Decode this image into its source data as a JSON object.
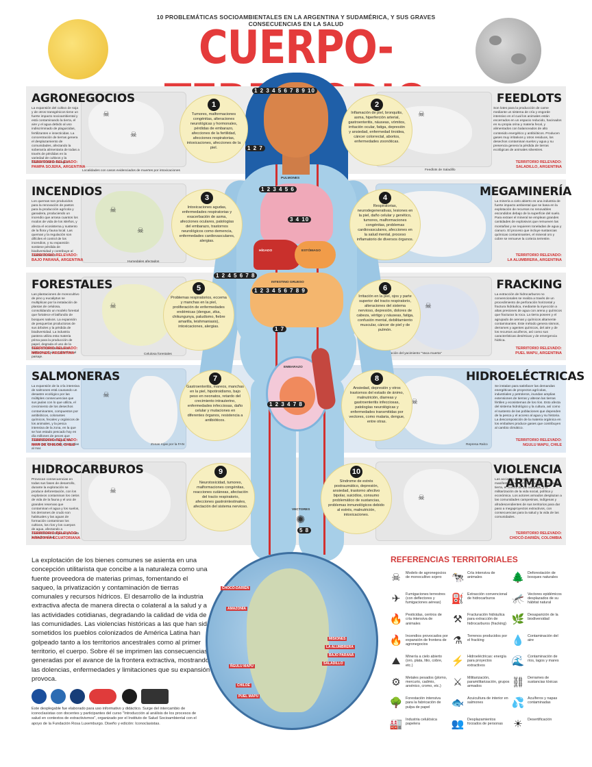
{
  "header": {
    "subtitle": "10 PROBLEMÁTICAS SOCIOAMBIENTALES EN LA ARGENTINA Y SUDAMÉRICA, Y SUS GRAVES CONSECUENCIAS EN LA SALUD",
    "title": "CUERPO-TERRITORIO"
  },
  "sections": [
    {
      "title": "AGRONEGOCIOS",
      "desc": "La expansión del cultivo de soja y de otros transgénicos tiene un fuerte impacto socioambiental y está contaminando la tierra, el aire y el agua debido al uso indiscriminado de plaguicidas, fertilizantes e insecticidas. La concentración de tierras genera el desplazamiento de comunidades, afectando la soberanía alimentaria de todas a través de pérdidas en la variedad de cultivos y la biodiversidad de la región.",
      "territory_label": "TERRITORIO RELEVADO:",
      "territory": "PAMPA SOJERA, ARGENTINA",
      "legend": "Localidades con casos evidenciados de muertes por intoxicaciones"
    },
    {
      "title": "FEEDLOTS",
      "desc": "Son lotes para la producción de carne mediante un sistema de cría y engorde intensivo en el cual los animales están encerrados en un espacio reducido, hacinados en su propia orina y materia fecal, y alimentados con balanceados de alto contenido energético y antibióticos. Producen gases muy irritativos y otros residuos, los desechos contaminan suelos y agua y su presencia genera la pérdida de tierras ecológicas de animales silvestres.",
      "territory_label": "TERRITORIO RELEVADO:",
      "territory": "SALADILLO, ARGENTINA",
      "legend": "Feedlots de Saladillo"
    },
    {
      "title": "INCENDIOS",
      "desc": "Los quemas son producidos para la renovación de pastos para la producción agrícola y ganadera, produciendo un incendio que arrasa cuantos los modos de vida de los isleños, y afecta el ecosistema y sustento de la flora y fauna local. Las quemas y la regulación son difíciles el control de los incendios, y su expansión sostiene pérdida de biodiversidad y contribuye al cambio climático.",
      "territory_label": "TERRITORIO RELEVADO:",
      "territory": "BAJO PARANÁ, ARGENTINA",
      "legend": "Humedales afectados"
    },
    {
      "title": "MEGAMINERÍA",
      "desc": "La minería a cielo abierto es una industria de fuerte impacto ambiental que se basa en la explotación de recursos no renovables escondidos debajo de la superficie del suelo. Para extraer el mineral se emplean grandes cantidades de explosivos que remueven las montañas y se requieren toneladas de agua y cianuro. El proceso que incluye sustancias químicas contaminantes, el mineral oro y cobre se remueve la corteza terrestre.",
      "territory_label": "TERRITORIO RELEVADO:",
      "territory": "LA ALUMBRERA, ARGENTINA",
      "legend": ""
    },
    {
      "title": "FORESTALES",
      "desc": "Las plantaciones de monocultivo de pino y eucaliptus se multiplican por la instalación de plantas de celulosa, consolidando un modelo forestal que fortalece el latifundio de bosques nativos. La expansión de pesquerías productoras de sus árboles y la pérdida de biodiversidad. La industria pastera utiliza esta materia prima para la producción de papel, degrada el uso de la tierra, contamina recursos hídricos y el aire, y deteriora el paisaje.",
      "territory_label": "TERRITORIO RELEVADO:",
      "territory": "MISIONES, ARGENTINA",
      "legend": "Celulosa forestales"
    },
    {
      "title": "FRACKING",
      "desc": "La extracción de hidrocarburos no convencionales se realiza a través de un procedimiento de perforación horizontal y fractura hidráulica, mediante la inyección a altas presiones de agua con arena y químicos que fracturan la roca. La tierra poseen y el agrupado de arenas y químicos altamente contaminantes. Este método genera sismos, derrames y agentes químicos, del aire y de los recursos acuíferos, así como sus características desérticas y de emergencia hídrica.",
      "territory_label": "TERRITORIO RELEVADO:",
      "territory": "PUEL MAPU, ARGENTINA",
      "legend": "Ubicación del yacimiento \"Vaca muerta\""
    },
    {
      "title": "SALMONERAS",
      "desc": "La expansión de la cría intensiva de salmones está causando un desastre ecológico por las múltiples consecuencias que sus jaulas con lo que utiliza, el crecimiento de los desechos contaminantes, compuestos por antibióticos, colorantes químicos, fecales y orgánicos de los animales, y la pesca intensiva de la zona, en la que se han estado pescado hoy en día millones de peces que contaminan a los lagos, los mares por las presas escapadas al mar.",
      "territory_label": "TERRITORIO RELEVADO:",
      "territory": "MAR DE CHILOÉ, CHILE",
      "legend": "Zonas rojas por la FAN"
    },
    {
      "title": "HIDROELÉCTRICAS",
      "desc": "Se instalan para satisfacer las demandas energéticas de proyectos agrícolas, industriales y petroleros, inundan amplias extensiones de tierras y alteran las tierras fértiles y ecosistemas de los ríos. Esto afecta del sistema hidrológico y la cultura, así como el sustento de las poblaciones que dependen de la pesca y el acceso al agua y su historia. La descomposición de la materia orgánica en los embalses produce gases que contribuyen al cambio climático.",
      "territory_label": "TERRITORIO RELEVADO:",
      "territory": "NGULU MAPU, CHILE",
      "legend": "Represa Ralco"
    },
    {
      "title": "HIDROCARBUROS",
      "desc": "Provocan consecuencias en todas sus fases de desarrollo, durante la exploración se produce deforestación, con los explosivos contaminan los cielos de vida de la fauna y el uso de grandes reservas que contaminan el agua y los suelos, los derrames de crudo son habituales y las aguas de formación contaminan los cultivos, los ríos y los cuerpos de agua, afectando a comunidades indígenas y a toda la biodiversidad.",
      "territory_label": "TERRITORIO RELEVADO:",
      "territory": "AMAZONÍA ECUATORIANA",
      "legend": ""
    },
    {
      "title": "VIOLENCIA ARMADA",
      "desc": "Las acciones del conflicto tienen manifestaciones territoriales en el uso de la tierra, el control de los recursos, y la militarización de la vida social, política y económica. Los actores armados desplazan a las comunidades campesinas, indígenas y afrodescendientes de sus territorios para dar paso a megaproyectos extractivos, con consecuencias para la salud y la vida de las comunidades.",
      "territory_label": "TERRITORIO RELEVADO:",
      "territory": "CHOCÓ-DARIÉN, COLOMBIA",
      "legend": ""
    }
  ],
  "effects": [
    {
      "num": "1",
      "text": "Tumores, malformaciones congénitas, alteraciones neurológicas y hormonales, pérdidas de embarazo, afecciones de la fertilidad, afecciones respiratorias, intoxicaciones, afecciones de la piel."
    },
    {
      "num": "2",
      "text": "Inflamación de piel, bronquitis, asma, hiperferción arterial, gastroenteritis, náuseas, vómitos, irritación ocular, fatiga, depresión y ansiedad, enfermedad tiroidea, cáncer colorrectal, abortos, enfermedades zoonóticas."
    },
    {
      "num": "3",
      "text": "Intoxicaciones agudas, enfermedades respiratorias y exacerbación de asma, afecciones oculares, patologías del embarazo, trastornos neurológicos como demencia, enfermedades cardiovasculares, alergias."
    },
    {
      "num": "4",
      "text": "Respiratorias, neurodegenerativas, lesiones en la piel, daño celular y genético, tumores, malformaciones congénitas, problemas cardiovasculares, afecciones en la salud mental, proceso inflamatorio de diversos órganos."
    },
    {
      "num": "5",
      "text": "Problemas respiratorios, eccema y manchas en la piel, proliferación de enfermedades endémicas (dengue, zika, chikungunya, paludismo, fiebre amarilla, leishmaniasis), intoxicaciones, alergias."
    },
    {
      "num": "6",
      "text": "Irritación en la piel, ojos y parte superior del tracto respiratorio, alteraciones del sistema nervioso, depresión, dolores de cabeza, vértigo y náuseas, fatiga, confusión mental, debilitamiento muscular, cáncer de piel y de pulmón."
    },
    {
      "num": "7",
      "text": "Gastroenteritis, mareos, manchas en la piel, hipotiroidismo, bajo peso en neonatos, retardo del crecimiento intrauterino, enfermedades infecciosas, daño celular y mutaciones en diferentes órganos, resistencia a antibióticos."
    },
    {
      "num": "8",
      "text": "Ansiedad, depresión y otros trastornos del estado de ánimo, malnutrición, diarreas y gastroenteritis infecciosas, patologías neurológicas y enfermedades transmitidas por vectores, como malaria, dengue, entre otras."
    },
    {
      "num": "9",
      "text": "Neurotoxicidad, tumores, malformaciones congénitas, reacciones cutáneas, afectación del tracto respiratorio, afecciones gastrointestinales, afectación del sistema nervioso."
    },
    {
      "num": "10",
      "text": "Síndrome de estrés postraumático, depresión, ansiedad, trastorno afectivo bipolar, suicidios, consumo problemático de sustancias, problemas inmunológicos debido al estrés, malnutrición, intoxicaciones."
    }
  ],
  "body_labels": {
    "head_numbers": "1 2 3 4 5 6 7 8 9 10",
    "neck_numbers": "1 2 7",
    "lung_numbers": "1 2 3 4 5 6",
    "liver_numbers": "3 4 10",
    "side_numbers": "1 2 4 5 6 7 8",
    "gut_numbers": "1 2 3 4 5 6 7 8 9",
    "womb_numbers": "1 2 3 4 7 8",
    "bottom_number": "1 7",
    "leg_numbers": "5 8",
    "organ_pulmones": "PULMONES",
    "organ_higado": "HÍGADO",
    "organ_estomago": "ESTÓMAGO",
    "organ_intestino": "INTESTINO GRUESO",
    "organ_embarazo": "EMBARAZO",
    "organ_vectores": "VECTORES"
  },
  "intro_text": "La explotación de los bienes comunes se asienta en una concepción utilitarista que concibe a la naturaleza como una fuente proveedora de materias primas, fomentando el saqueo, la privatización y contaminación de tierras comunales y recursos hídricos. El desarrollo de la industria extractiva afecta de manera directa o colateral a la salud y a las actividades cotidianas, degradando la calidad de vida de las comunidades. Las violencias históricas a las que han sido sometidos los pueblos colonizados de América Latina han golpeado tanto a los territorios ancestrales como al primer territorio, el cuerpo. Sobre él se imprimen las consecuencias generadas por el avance de la frontera extractiva, mostrando las dolencias, enfermedades y limitaciones que su expansión provoca.",
  "credits": "Este desplegable fue elaborado para uso informativo y didáctico. Surge del intercambio de iconoclasistas con docentes y participantes del curso \"Introducción al análisis de los procesos de salud en contextos de extractivismos\", organizado por el Instituto de Salud Socioambiental con el apoyo de la Fundación Rosa Luxemburgo. Diseño y edición: Iconoclasistas.",
  "map_labels": [
    "CHOCÓ-DARIÉN",
    "AMAZONÍA",
    "MISIONES",
    "LA ALUMBRERA",
    "BAJO PARANÁ",
    "SALADILLO",
    "ÑGULU MAPU",
    "CHILOÉ",
    "PUEL MAPU"
  ],
  "references": {
    "title": "REFERENCIAS TERRITORIALES",
    "items": [
      {
        "icon": "☠",
        "text": "Modelo de agronegocios de monocultivo sojero"
      },
      {
        "icon": "🐄",
        "text": "Cría intensiva de animales"
      },
      {
        "icon": "🌲",
        "text": "Deforestación de bosques naturales"
      },
      {
        "icon": "✈",
        "text": "Fumigaciones terrestres (con deflectores y fumigaciones aéreas)"
      },
      {
        "icon": "⛽",
        "text": "Extracción convencional de hidrocarburos"
      },
      {
        "icon": "🦟",
        "text": "Vectores epidémicos desplazados de su hábitat natural"
      },
      {
        "icon": "🔥",
        "text": "Pesticidas, centros de cría intensiva de animales"
      },
      {
        "icon": "⚒",
        "text": "Fracturación hidráulica para extracción de hidrocarburos (fracking)"
      },
      {
        "icon": "🌿",
        "text": "Desaparición de la biodiversidad"
      },
      {
        "icon": "🔥",
        "text": "Incendios provocados por expansión de frontera de agronegocios"
      },
      {
        "icon": "⚗",
        "text": "Terrenos producidos por el fracking"
      },
      {
        "icon": "💧",
        "text": "Contaminación del aire"
      },
      {
        "icon": "⛰",
        "text": "Minería a cielo abierto (oro, plata, litio, cobre, etc.)"
      },
      {
        "icon": "⚡",
        "text": "Hidroeléctricas: energía para proyectos extractivos"
      },
      {
        "icon": "🌊",
        "text": "Contaminación de ríos, lagos y mares"
      },
      {
        "icon": "⚙",
        "text": "Metales pesados (plomo, mercurio, cadmio, arsénico, cromo, etc.)"
      },
      {
        "icon": "⚔",
        "text": "Militarización, paramilitarización, grupos armados"
      },
      {
        "icon": "⛓",
        "text": "Derrames de sustancias tóxicas"
      },
      {
        "icon": "🌳",
        "text": "Forestación intensiva para la fabricación de pulpa de papel"
      },
      {
        "icon": "🐟",
        "text": "Acuicultura de interior en salmones"
      },
      {
        "icon": "💦",
        "text": "Acuíferos y napas contaminadas"
      },
      {
        "icon": "🏭",
        "text": "Industria celulósica papelera"
      },
      {
        "icon": "👥",
        "text": "Desplazamientos forzados de personas"
      },
      {
        "icon": "☀",
        "text": "Desertificación"
      }
    ]
  },
  "colors": {
    "title_red": "#e43b3b",
    "hair_blue": "#1f5fa8",
    "body_blue": "#a7cfe8",
    "bubble_yellow": "#f7efc0"
  }
}
